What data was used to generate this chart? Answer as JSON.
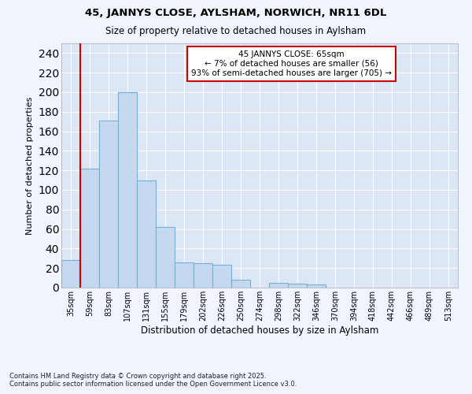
{
  "title1": "45, JANNYS CLOSE, AYLSHAM, NORWICH, NR11 6DL",
  "title2": "Size of property relative to detached houses in Aylsham",
  "xlabel": "Distribution of detached houses by size in Aylsham",
  "ylabel": "Number of detached properties",
  "categories": [
    "35sqm",
    "59sqm",
    "83sqm",
    "107sqm",
    "131sqm",
    "155sqm",
    "179sqm",
    "202sqm",
    "226sqm",
    "250sqm",
    "274sqm",
    "298sqm",
    "322sqm",
    "346sqm",
    "370sqm",
    "394sqm",
    "418sqm",
    "442sqm",
    "466sqm",
    "489sqm",
    "513sqm"
  ],
  "values": [
    28,
    122,
    171,
    200,
    110,
    62,
    26,
    25,
    23,
    8,
    0,
    5,
    4,
    3,
    0,
    0,
    0,
    0,
    0,
    0,
    0
  ],
  "bar_color": "#c5d8f0",
  "bar_edge_color": "#7aafd4",
  "bg_color": "#dce6f5",
  "grid_color": "#ffffff",
  "vline_x": 0.5,
  "vline_color": "#cc0000",
  "annotation_text": "45 JANNYS CLOSE: 65sqm\n← 7% of detached houses are smaller (56)\n93% of semi-detached houses are larger (705) →",
  "annotation_box_color": "#ffffff",
  "annotation_border_color": "#cc0000",
  "footnote": "Contains HM Land Registry data © Crown copyright and database right 2025.\nContains public sector information licensed under the Open Government Licence v3.0.",
  "ylim": [
    0,
    250
  ],
  "yticks": [
    0,
    20,
    40,
    60,
    80,
    100,
    120,
    140,
    160,
    180,
    200,
    220,
    240
  ],
  "fig_bg": "#f0f4fc"
}
